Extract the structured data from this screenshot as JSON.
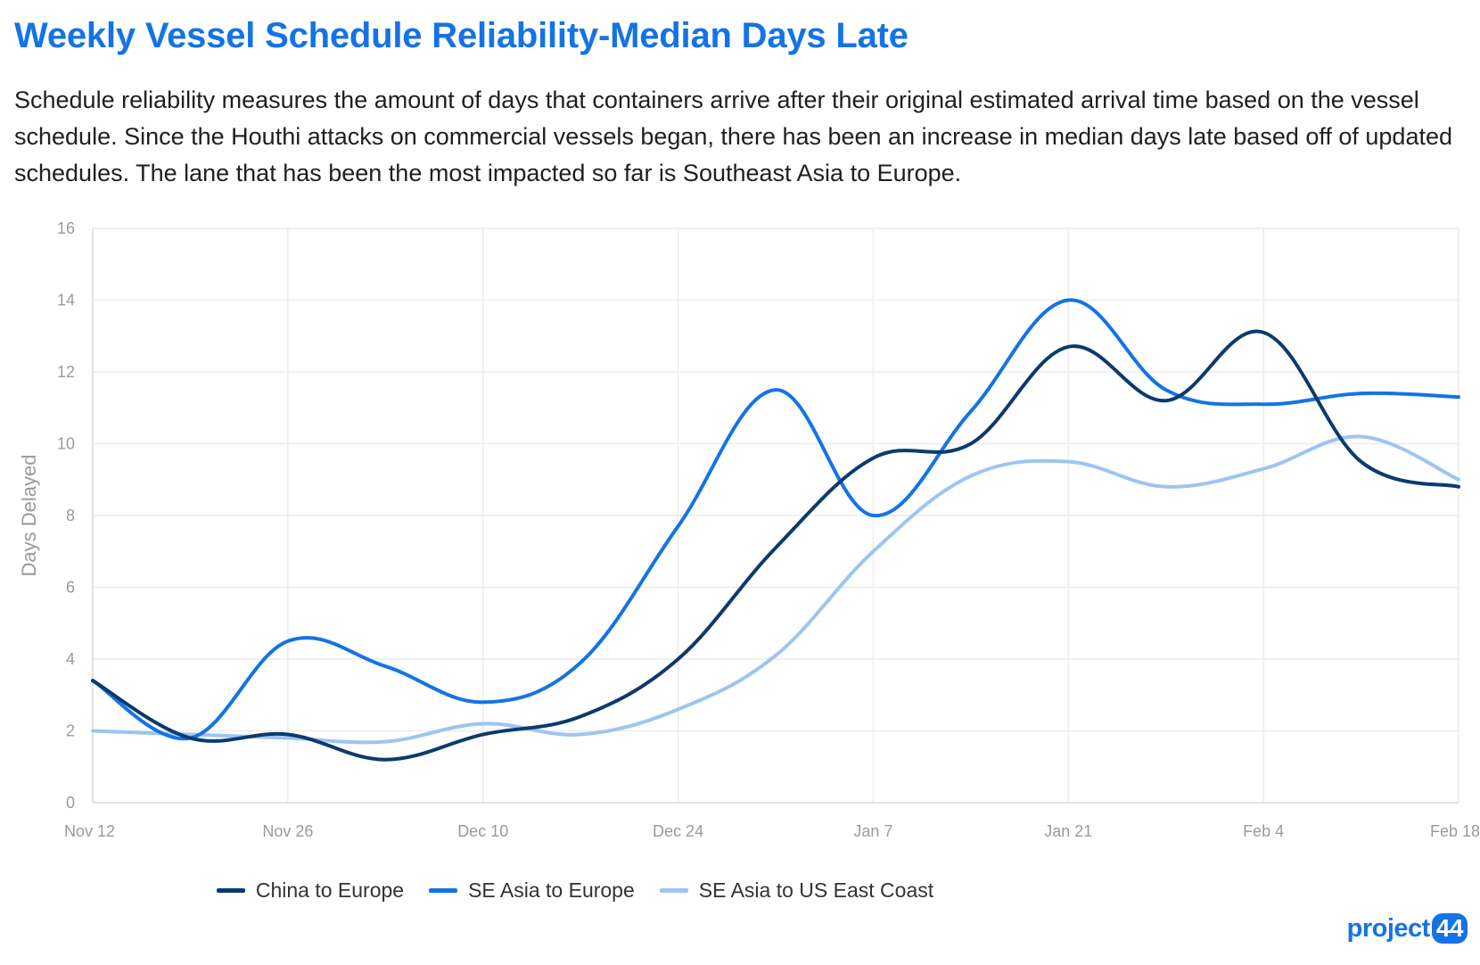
{
  "header": {
    "title": "Weekly Vessel Schedule Reliability-Median Days Late",
    "subtitle": "Schedule reliability measures the amount of days that containers arrive after their original estimated arrival time based on the vessel schedule. Since the Houthi attacks on commercial vessels began, there has been an increase in median days late based off of updated schedules. The lane that has been the most impacted so far is Southeast Asia to Europe."
  },
  "logo": {
    "text": "project",
    "badge": "44"
  },
  "chart_data": {
    "type": "line",
    "ylabel": "Days Delayed",
    "ylim": [
      0,
      16
    ],
    "yticks": [
      "0",
      "2",
      "4",
      "6",
      "8",
      "10",
      "12",
      "14",
      "16"
    ],
    "xtick_labels": [
      "Nov 12",
      "Nov 26",
      "Dec 10",
      "Dec 24",
      "Jan 7",
      "Jan 21",
      "Feb 4",
      "Feb 18"
    ],
    "x": [
      "Nov 12",
      "Nov 19",
      "Nov 26",
      "Dec 3",
      "Dec 10",
      "Dec 17",
      "Dec 24",
      "Dec 31",
      "Jan 7",
      "Jan 14",
      "Jan 21",
      "Jan 28",
      "Feb 4",
      "Feb 11",
      "Feb 18"
    ],
    "grid": true,
    "legend_position": "bottom",
    "series": [
      {
        "name": "China to Europe",
        "color": "#0b3a6e",
        "values": [
          3.4,
          1.8,
          1.9,
          1.2,
          1.9,
          2.4,
          4.0,
          7.1,
          9.6,
          10.0,
          12.7,
          11.2,
          13.1,
          9.5,
          8.8
        ]
      },
      {
        "name": "SE Asia to Europe",
        "color": "#1473e6",
        "values": [
          3.4,
          1.8,
          4.5,
          3.8,
          2.8,
          3.9,
          7.7,
          11.5,
          8.0,
          10.9,
          14.0,
          11.5,
          11.1,
          11.4,
          11.3
        ]
      },
      {
        "name": "SE Asia to US East Coast",
        "color": "#9cc5f1",
        "values": [
          2.0,
          1.9,
          1.8,
          1.7,
          2.2,
          1.9,
          2.6,
          4.1,
          7.0,
          9.1,
          9.5,
          8.8,
          9.3,
          10.2,
          9.0
        ]
      }
    ]
  }
}
